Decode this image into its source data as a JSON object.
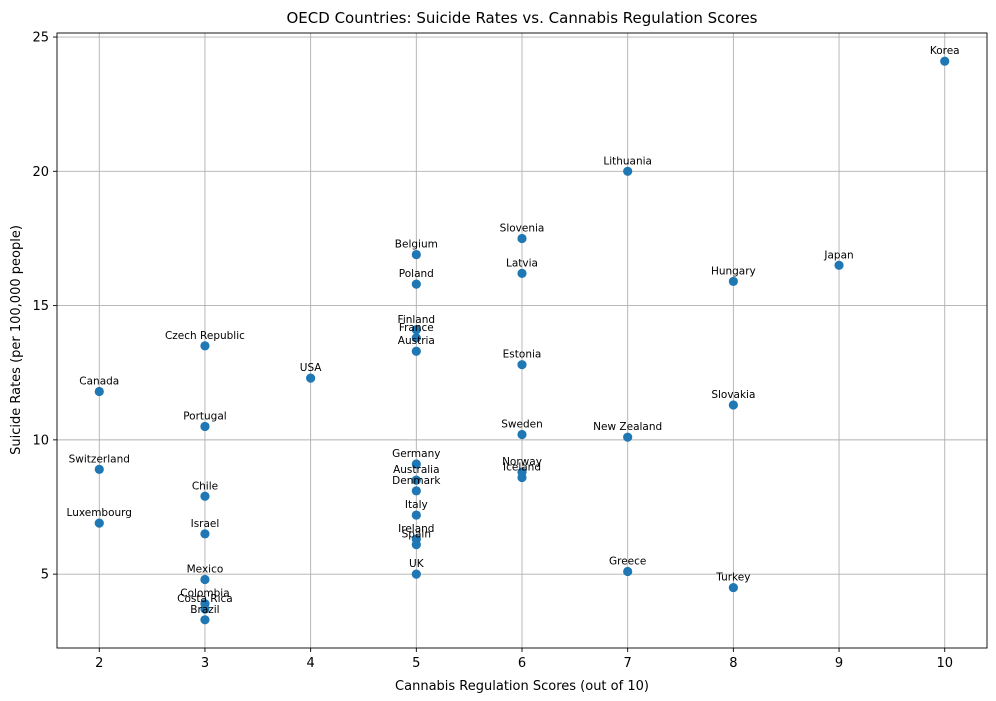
{
  "chart_data": {
    "type": "scatter",
    "title": "OECD Countries: Suicide Rates vs. Cannabis Regulation Scores",
    "xlabel": "Cannabis Regulation Scores (out of 10)",
    "ylabel": "Suicide Rates (per 100,000 people)",
    "xlim": [
      1.6,
      10.4
    ],
    "ylim": [
      2.25,
      25.15
    ],
    "xticks": [
      2,
      3,
      4,
      5,
      6,
      7,
      8,
      9,
      10
    ],
    "yticks": [
      5,
      10,
      15,
      20,
      25
    ],
    "grid": true,
    "marker_color": "#1f77b4",
    "points": [
      {
        "label": "Korea",
        "x": 10,
        "y": 24.1
      },
      {
        "label": "Lithuania",
        "x": 7,
        "y": 20.0
      },
      {
        "label": "Slovenia",
        "x": 6,
        "y": 17.5
      },
      {
        "label": "Belgium",
        "x": 5,
        "y": 16.9
      },
      {
        "label": "Japan",
        "x": 9,
        "y": 16.5
      },
      {
        "label": "Latvia",
        "x": 6,
        "y": 16.2
      },
      {
        "label": "Hungary",
        "x": 8,
        "y": 15.9
      },
      {
        "label": "Poland",
        "x": 5,
        "y": 15.8
      },
      {
        "label": "Finland",
        "x": 5,
        "y": 14.1
      },
      {
        "label": "France",
        "x": 5,
        "y": 13.8
      },
      {
        "label": "Czech Republic",
        "x": 3,
        "y": 13.5
      },
      {
        "label": "Austria",
        "x": 5,
        "y": 13.3
      },
      {
        "label": "Estonia",
        "x": 6,
        "y": 12.8
      },
      {
        "label": "USA",
        "x": 4,
        "y": 12.3
      },
      {
        "label": "Canada",
        "x": 2,
        "y": 11.8
      },
      {
        "label": "Slovakia",
        "x": 8,
        "y": 11.3
      },
      {
        "label": "Portugal",
        "x": 3,
        "y": 10.5
      },
      {
        "label": "Sweden",
        "x": 6,
        "y": 10.2
      },
      {
        "label": "New Zealand",
        "x": 7,
        "y": 10.1
      },
      {
        "label": "Germany",
        "x": 5,
        "y": 9.1
      },
      {
        "label": "Switzerland",
        "x": 2,
        "y": 8.9
      },
      {
        "label": "Norway",
        "x": 6,
        "y": 8.8
      },
      {
        "label": "Iceland",
        "x": 6,
        "y": 8.6
      },
      {
        "label": "Australia",
        "x": 5,
        "y": 8.5
      },
      {
        "label": "Denmark",
        "x": 5,
        "y": 8.1
      },
      {
        "label": "Chile",
        "x": 3,
        "y": 7.9
      },
      {
        "label": "Italy",
        "x": 5,
        "y": 7.2
      },
      {
        "label": "Luxembourg",
        "x": 2,
        "y": 6.9
      },
      {
        "label": "Israel",
        "x": 3,
        "y": 6.5
      },
      {
        "label": "Ireland",
        "x": 5,
        "y": 6.3
      },
      {
        "label": "Spain",
        "x": 5,
        "y": 6.1
      },
      {
        "label": "Greece",
        "x": 7,
        "y": 5.1
      },
      {
        "label": "UK",
        "x": 5,
        "y": 5.0
      },
      {
        "label": "Mexico",
        "x": 3,
        "y": 4.8
      },
      {
        "label": "Turkey",
        "x": 8,
        "y": 4.5
      },
      {
        "label": "Colombia",
        "x": 3,
        "y": 3.9
      },
      {
        "label": "Costa Rica",
        "x": 3,
        "y": 3.7
      },
      {
        "label": "Brazil",
        "x": 3,
        "y": 3.3
      }
    ]
  }
}
